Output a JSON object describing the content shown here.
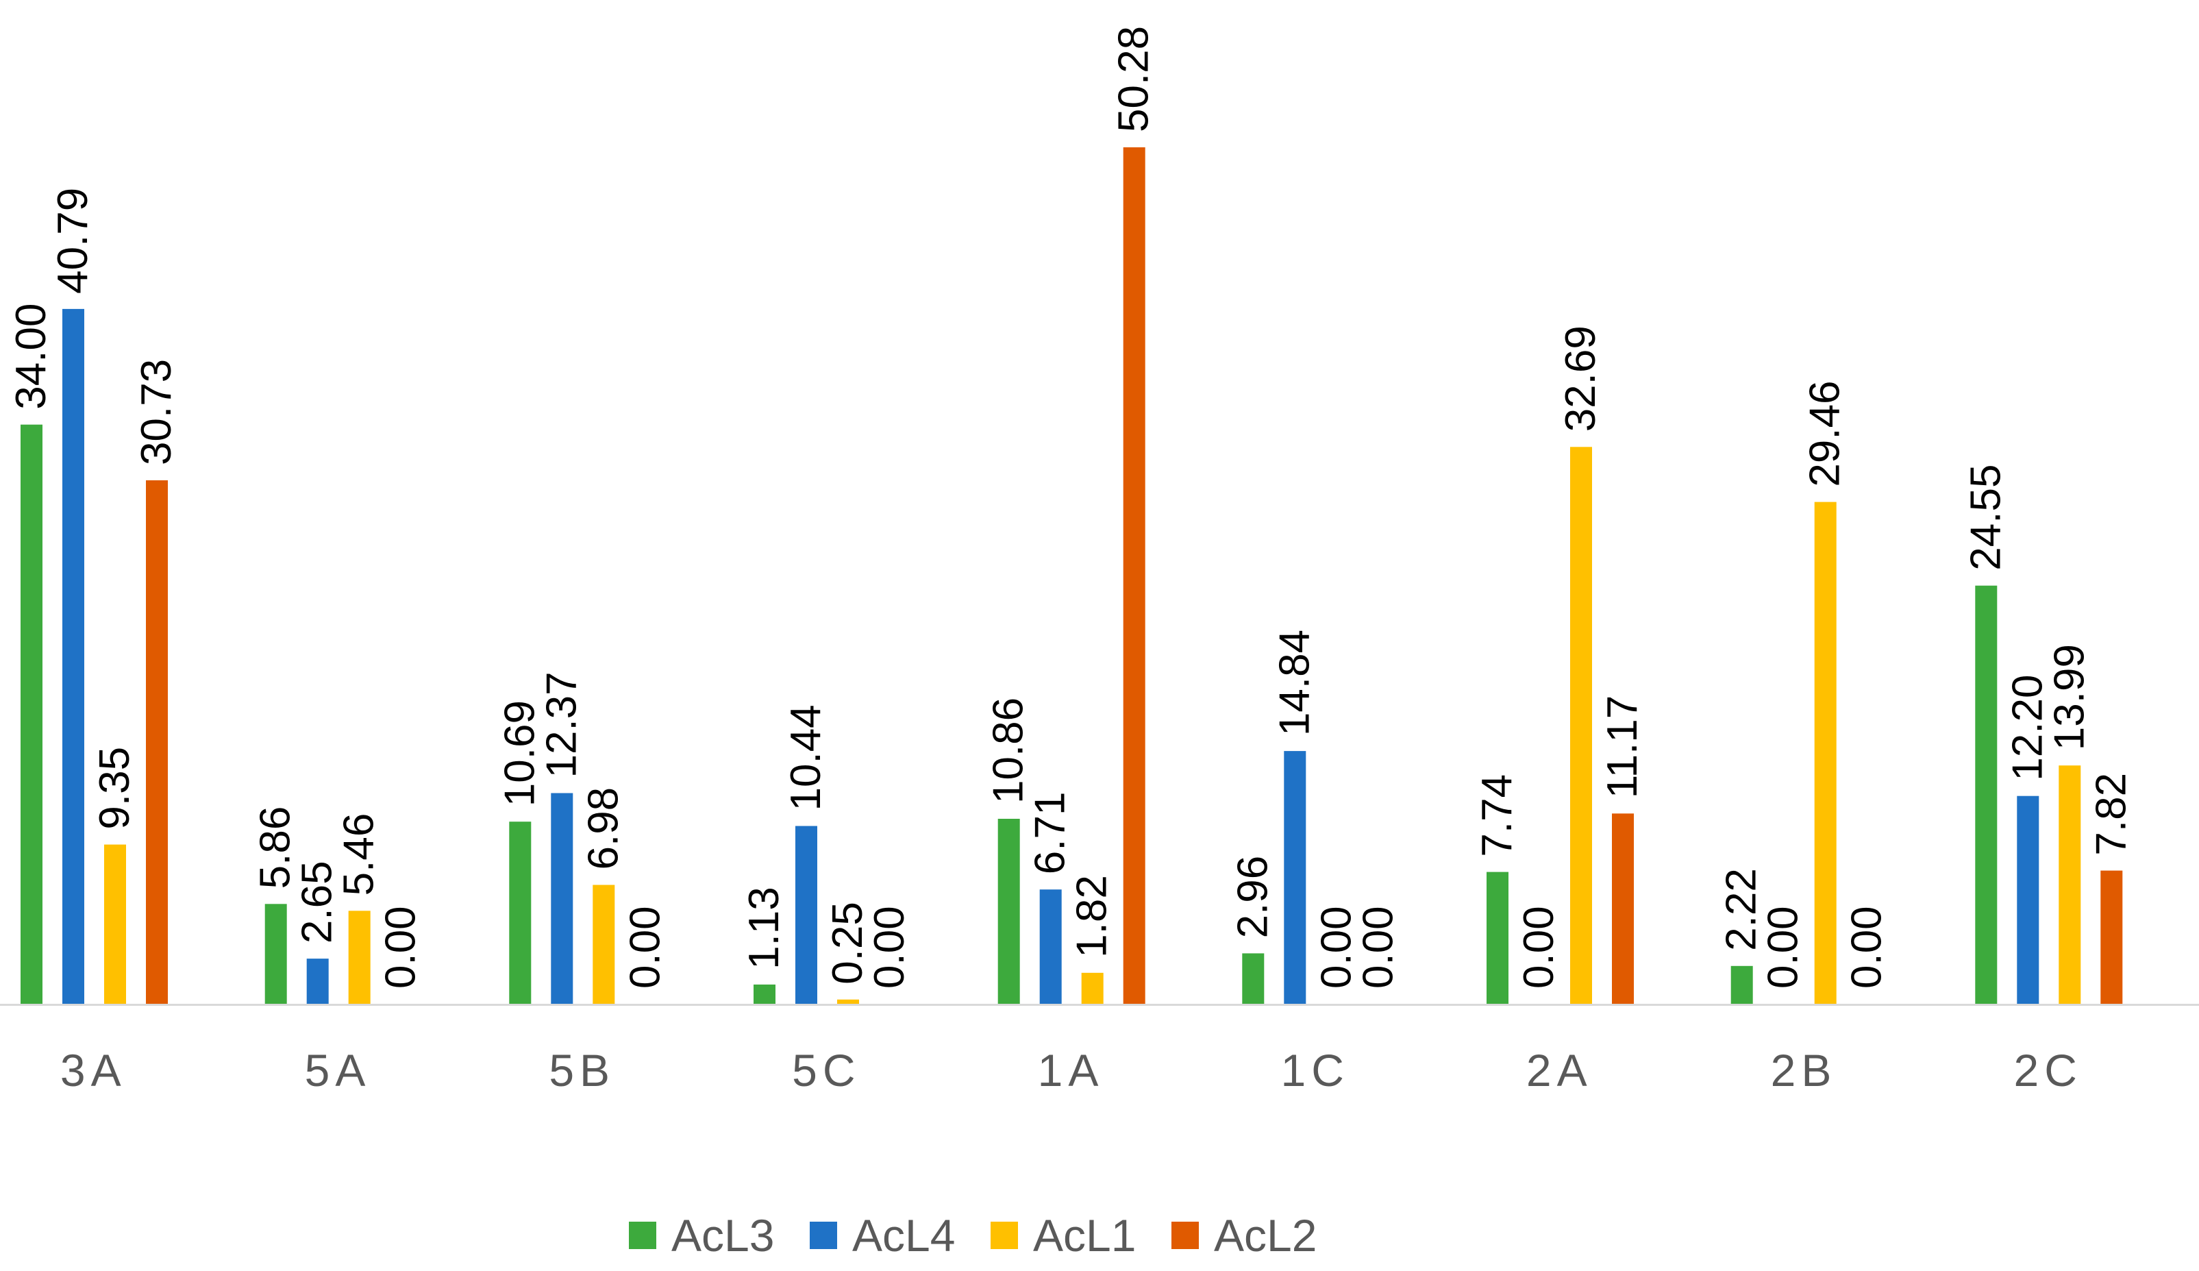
{
  "chart_data": {
    "type": "bar",
    "categories": [
      "3A",
      "5A",
      "5B",
      "5C",
      "1A",
      "1C",
      "2A",
      "2B",
      "2C"
    ],
    "series": [
      {
        "name": "AcL3",
        "color": "#3DAA3D",
        "values": [
          34.0,
          5.86,
          10.69,
          1.13,
          10.86,
          2.96,
          7.74,
          2.22,
          24.55
        ],
        "labels": [
          "34.00",
          "5.86",
          "10.69",
          "1.13",
          "10.86",
          "2.96",
          "7.74",
          "2.22",
          "24.55"
        ]
      },
      {
        "name": "AcL4",
        "color": "#1F72C6",
        "values": [
          40.79,
          2.65,
          12.37,
          10.44,
          6.71,
          14.84,
          0.0,
          0.0,
          12.2
        ],
        "labels": [
          "40.79",
          "2.65",
          "12.37",
          "10.44",
          "6.71",
          "14.84",
          "0.00",
          "0.00",
          "12.20"
        ]
      },
      {
        "name": "AcL1",
        "color": "#FFC000",
        "values": [
          9.35,
          5.46,
          6.98,
          0.25,
          1.82,
          0.0,
          32.69,
          29.46,
          13.99
        ],
        "labels": [
          "9.35",
          "5.46",
          "6.98",
          "0.25",
          "1.82",
          "0.00",
          "32.69",
          "29.46",
          "13.99"
        ]
      },
      {
        "name": "AcL2",
        "color": "#E05A00",
        "values": [
          30.73,
          0.0,
          0.0,
          0.0,
          50.28,
          0.0,
          11.17,
          0.0,
          7.82
        ],
        "labels": [
          "30.73",
          "0.00",
          "0.00",
          "0.00",
          "50.28",
          "0.00",
          "11.17",
          "0.00",
          "7.82"
        ]
      }
    ],
    "ylim": [
      0,
      50.28
    ],
    "grid": false,
    "legend_position": "bottom",
    "axis_color": "#D9D9D9",
    "title": "",
    "xlabel": "",
    "ylabel": ""
  }
}
